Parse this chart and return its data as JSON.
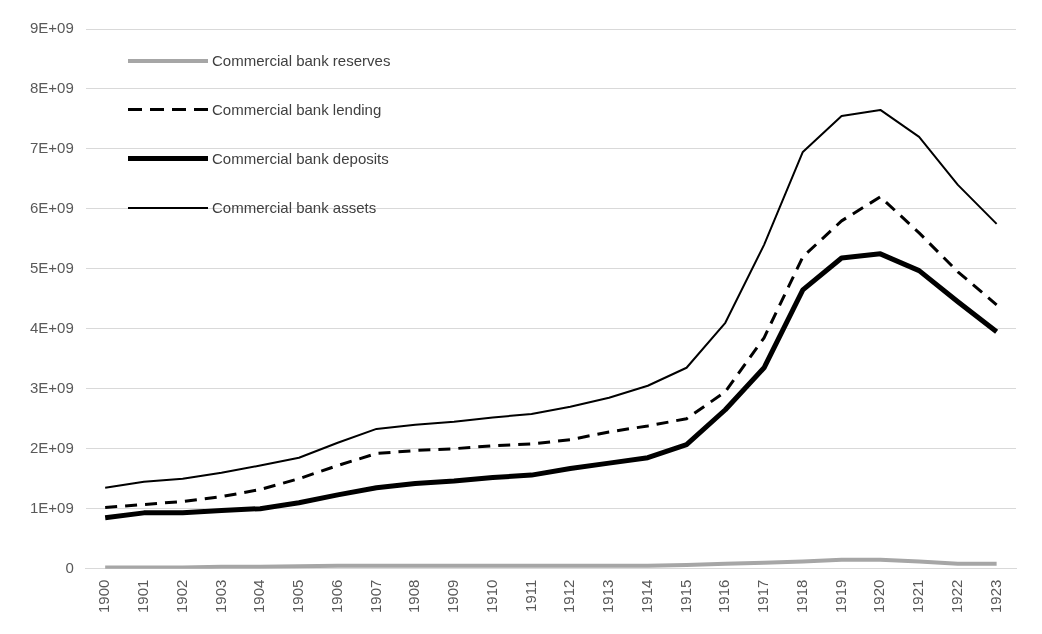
{
  "chart_data": {
    "type": "line",
    "categories": [
      "1900",
      "1901",
      "1902",
      "1903",
      "1904",
      "1905",
      "1906",
      "1907",
      "1908",
      "1909",
      "1910",
      "1911",
      "1912",
      "1913",
      "1914",
      "1915",
      "1916",
      "1917",
      "1918",
      "1919",
      "1920",
      "1921",
      "1922",
      "1923"
    ],
    "series": [
      {
        "name": "Commercial bank reserves",
        "color": "#a6a6a6",
        "line_style": "solid",
        "values": [
          20000000,
          20000000,
          20000000,
          30000000,
          30000000,
          40000000,
          50000000,
          50000000,
          50000000,
          50000000,
          50000000,
          50000000,
          50000000,
          50000000,
          50000000,
          60000000,
          80000000,
          100000000,
          120000000,
          150000000,
          150000000,
          120000000,
          80000000,
          80000000
        ]
      },
      {
        "name": "Commercial bank lending",
        "color": "#000000",
        "line_style": "dashed",
        "values": [
          1020000000,
          1070000000,
          1120000000,
          1200000000,
          1320000000,
          1500000000,
          1720000000,
          1920000000,
          1970000000,
          2000000000,
          2050000000,
          2080000000,
          2150000000,
          2280000000,
          2380000000,
          2500000000,
          2950000000,
          3850000000,
          5200000000,
          5800000000,
          6200000000,
          5600000000,
          4950000000,
          4400000000
        ]
      },
      {
        "name": "Commercial bank deposits",
        "color": "#000000",
        "line_style": "solid",
        "values": [
          850000000,
          930000000,
          930000000,
          970000000,
          1000000000,
          1100000000,
          1230000000,
          1350000000,
          1420000000,
          1460000000,
          1520000000,
          1560000000,
          1670000000,
          1760000000,
          1850000000,
          2070000000,
          2650000000,
          3350000000,
          4650000000,
          5180000000,
          5250000000,
          4970000000,
          4450000000,
          3950000000
        ]
      },
      {
        "name": "Commercial bank assets",
        "color": "#000000",
        "line_style": "solid",
        "values": [
          1350000000,
          1450000000,
          1500000000,
          1600000000,
          1720000000,
          1850000000,
          2100000000,
          2330000000,
          2400000000,
          2450000000,
          2520000000,
          2580000000,
          2700000000,
          2850000000,
          3050000000,
          3350000000,
          4100000000,
          5400000000,
          6950000000,
          7550000000,
          7650000000,
          7200000000,
          6400000000,
          5750000000
        ]
      }
    ],
    "ylim": [
      0,
      9000000000
    ],
    "yticks": [
      0,
      {
        "value": 1000000000,
        "label": "1E+09"
      },
      {
        "value": 2000000000,
        "label": "2E+09"
      },
      {
        "value": 3000000000,
        "label": "3E+09"
      },
      {
        "value": 4000000000,
        "label": "4E+09"
      },
      {
        "value": 5000000000,
        "label": "5E+09"
      },
      {
        "value": 6000000000,
        "label": "6E+09"
      },
      {
        "value": 7000000000,
        "label": "7E+09"
      },
      {
        "value": 8000000000,
        "label": "8E+09"
      },
      {
        "value": 9000000000,
        "label": "9E+09"
      }
    ],
    "grid": "y",
    "legend": "top left",
    "marker": "none"
  }
}
